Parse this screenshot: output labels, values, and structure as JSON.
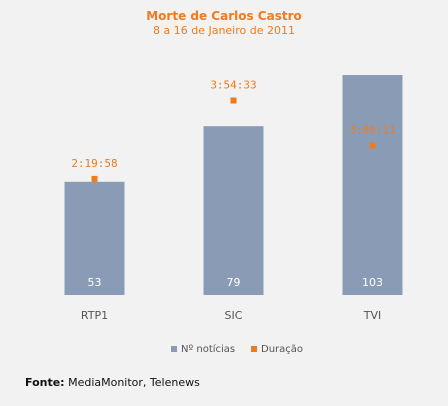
{
  "chart_data": {
    "type": "bar",
    "title": "Morte de Carlos Castro",
    "subtitle": "8 a 16 de Janeiro de 2011",
    "categories": [
      "RTP1",
      "SIC",
      "TVI"
    ],
    "series": [
      {
        "name": "Nº notícias",
        "type": "bar",
        "values": [
          53,
          79,
          103
        ],
        "value_labels": [
          "53",
          "79",
          "103"
        ],
        "color": "#8a9cb5"
      },
      {
        "name": "Duração",
        "type": "point",
        "values_seconds": [
          8398,
          14073,
          10811
        ],
        "value_labels": [
          "2:19:58",
          "3:54:33",
          "3:00:11"
        ],
        "color": "#f07a1e"
      }
    ],
    "ylim": [
      0,
      110
    ],
    "duration_ylim_seconds": [
      0,
      17000
    ],
    "grid": false,
    "legend": "bottom"
  },
  "source": {
    "label": "Fonte:",
    "text": "MediaMonitor, Telenews"
  }
}
